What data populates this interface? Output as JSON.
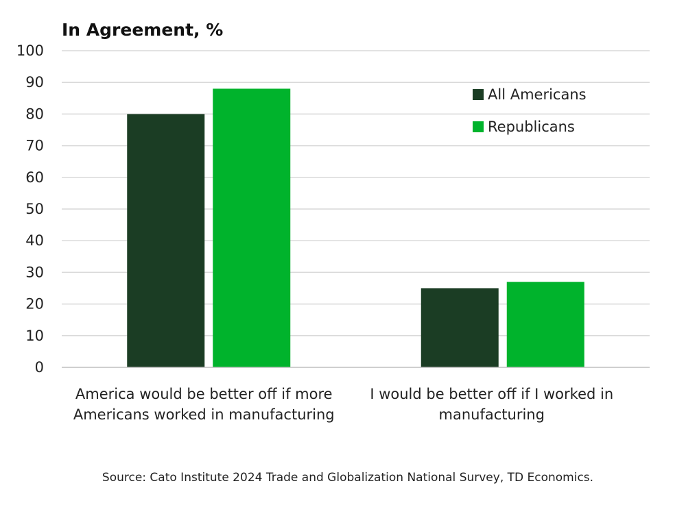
{
  "chart_data": {
    "type": "bar",
    "title": "In Agreement, %",
    "categories": [
      "America would be better off if more Americans worked in manufacturing",
      "I would be better off if I worked in manufacturing"
    ],
    "category_lines": [
      [
        "America would be better off if more",
        "Americans worked in manufacturing"
      ],
      [
        "I would be better off if I worked in",
        "manufacturing"
      ]
    ],
    "series": [
      {
        "name": "All Americans",
        "values": [
          80,
          25
        ],
        "color": "#1b3d24"
      },
      {
        "name": "Republicans",
        "values": [
          88,
          27
        ],
        "color": "#00b32c"
      }
    ],
    "ylim": [
      0,
      100
    ],
    "yticks": [
      0,
      10,
      20,
      30,
      40,
      50,
      60,
      70,
      80,
      90,
      100
    ],
    "xlabel": "",
    "ylabel": "",
    "grid": true,
    "legend_position": "top-right",
    "source": "Source: Cato Institute 2024 Trade and Globalization National Survey, TD Economics."
  }
}
